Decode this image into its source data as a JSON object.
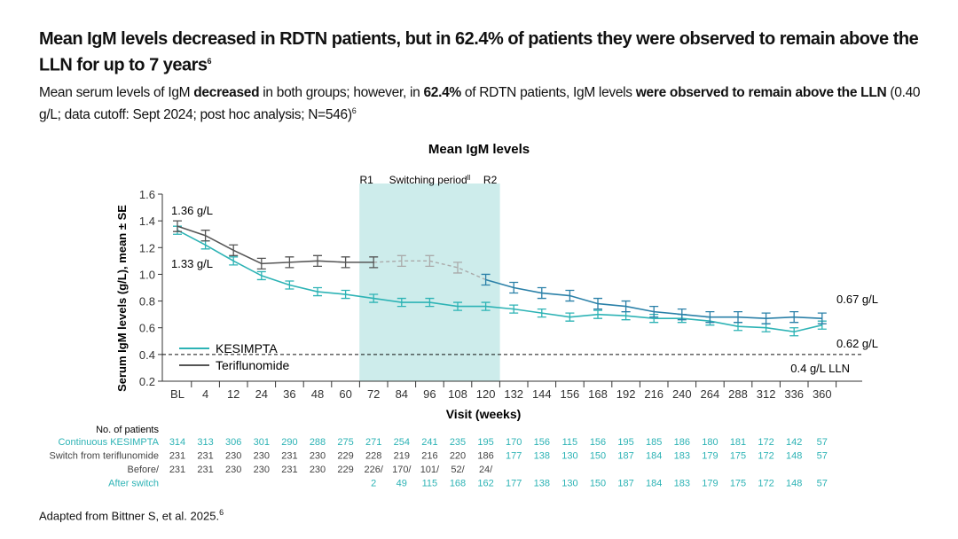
{
  "title": "Mean IgM levels decreased in RDTN patients, but in 62.4% of patients they were observed to remain above the LLN for up to 7 years",
  "title_sup": "6",
  "subtitle": {
    "p1": "Mean serum levels of IgM ",
    "b1": "decreased",
    "p2": " in both groups; however, in ",
    "b2": "62.4%",
    "p3": " of RDTN patients, IgM levels ",
    "b3": "were observed to remain above the LLN",
    "p4": " (0.40 g/L; data cutoff: Sept 2024; post hoc analysis; N=546)",
    "sup": "6"
  },
  "footnote": "Adapted from Bittner S, et al. 2025.",
  "footnote_sup": "6",
  "colors": {
    "kesimpta": "#2db3b5",
    "teriflunomide": "#555555",
    "after_switch": "#2a80a8",
    "switching_band": "#cdeceb"
  },
  "chart_data": {
    "type": "line",
    "title": "Mean IgM levels",
    "xlabel": "Visit (weeks)",
    "ylabel": "Serum IgM levels (g/L), mean ± SE",
    "categories": [
      "BL",
      "4",
      "12",
      "24",
      "36",
      "48",
      "60",
      "72",
      "84",
      "96",
      "108",
      "120",
      "132",
      "144",
      "156",
      "168",
      "192",
      "216",
      "240",
      "264",
      "288",
      "312",
      "336",
      "360"
    ],
    "ylim": [
      0.2,
      1.6
    ],
    "yticks": [
      "0.2",
      "0.4",
      "0.6",
      "0.8",
      "1.0",
      "1.2",
      "1.4",
      "1.6"
    ],
    "series": [
      {
        "name": "KESIMPTA",
        "values": [
          1.33,
          1.22,
          1.1,
          0.99,
          0.92,
          0.87,
          0.85,
          0.82,
          0.79,
          0.79,
          0.76,
          0.76,
          0.74,
          0.71,
          0.68,
          0.7,
          0.69,
          0.67,
          0.67,
          0.65,
          0.61,
          0.6,
          0.57,
          0.62
        ],
        "se": 0.03
      },
      {
        "name": "Teriflunomide",
        "values": [
          1.36,
          1.29,
          1.18,
          1.08,
          1.09,
          1.1,
          1.09,
          1.09,
          1.1,
          1.1,
          1.05,
          0.96,
          0.9,
          0.86,
          0.84,
          0.78,
          0.76,
          0.72,
          0.7,
          0.68,
          0.68,
          0.67,
          0.68,
          0.67
        ],
        "se": 0.04,
        "dashed_range": [
          "72",
          "120"
        ],
        "switched_from": "120"
      }
    ],
    "annotations": {
      "start_teri": "1.36 g/L",
      "start_kes": "1.33 g/L",
      "end_teri": "0.67 g/L",
      "end_kes": "0.62 g/L",
      "lln": "0.4 g/L LLN",
      "lln_value": 0.4,
      "r1": "R1",
      "switching": "Switching period",
      "switching_sup": "ll",
      "r2": "R2",
      "band": [
        "72",
        "120"
      ]
    },
    "legend": "bottom-left"
  },
  "table": {
    "header": "No. of patients",
    "rows": [
      {
        "label": "Continuous KESIMPTA",
        "color": "kes",
        "values": [
          "314",
          "313",
          "306",
          "301",
          "290",
          "288",
          "275",
          "271",
          "254",
          "241",
          "235",
          "195",
          "170",
          "156",
          "115",
          "156",
          "195",
          "185",
          "186",
          "180",
          "181",
          "172",
          "142",
          "57"
        ]
      },
      {
        "label": "Switch from teriflunomide",
        "color": "mix",
        "values": [
          "231",
          "231",
          "230",
          "230",
          "231",
          "230",
          "229",
          "228",
          "219",
          "216",
          "220",
          "186",
          "177",
          "138",
          "130",
          "150",
          "187",
          "184",
          "183",
          "179",
          "175",
          "172",
          "148",
          "57"
        ]
      },
      {
        "label": "Before/",
        "color": "teri",
        "values": [
          "231",
          "231",
          "230",
          "230",
          "231",
          "230",
          "229",
          "226/",
          "170/",
          "101/",
          "52/",
          "24/",
          "",
          "",
          "",
          "",
          "",
          "",
          "",
          "",
          "",
          "",
          "",
          ""
        ]
      },
      {
        "label": "After switch",
        "color": "kes",
        "values": [
          "",
          "",
          "",
          "",
          "",
          "",
          "",
          "2",
          "49",
          "115",
          "168",
          "162",
          "177",
          "138",
          "130",
          "150",
          "187",
          "184",
          "183",
          "179",
          "175",
          "172",
          "148",
          "57"
        ]
      }
    ]
  }
}
